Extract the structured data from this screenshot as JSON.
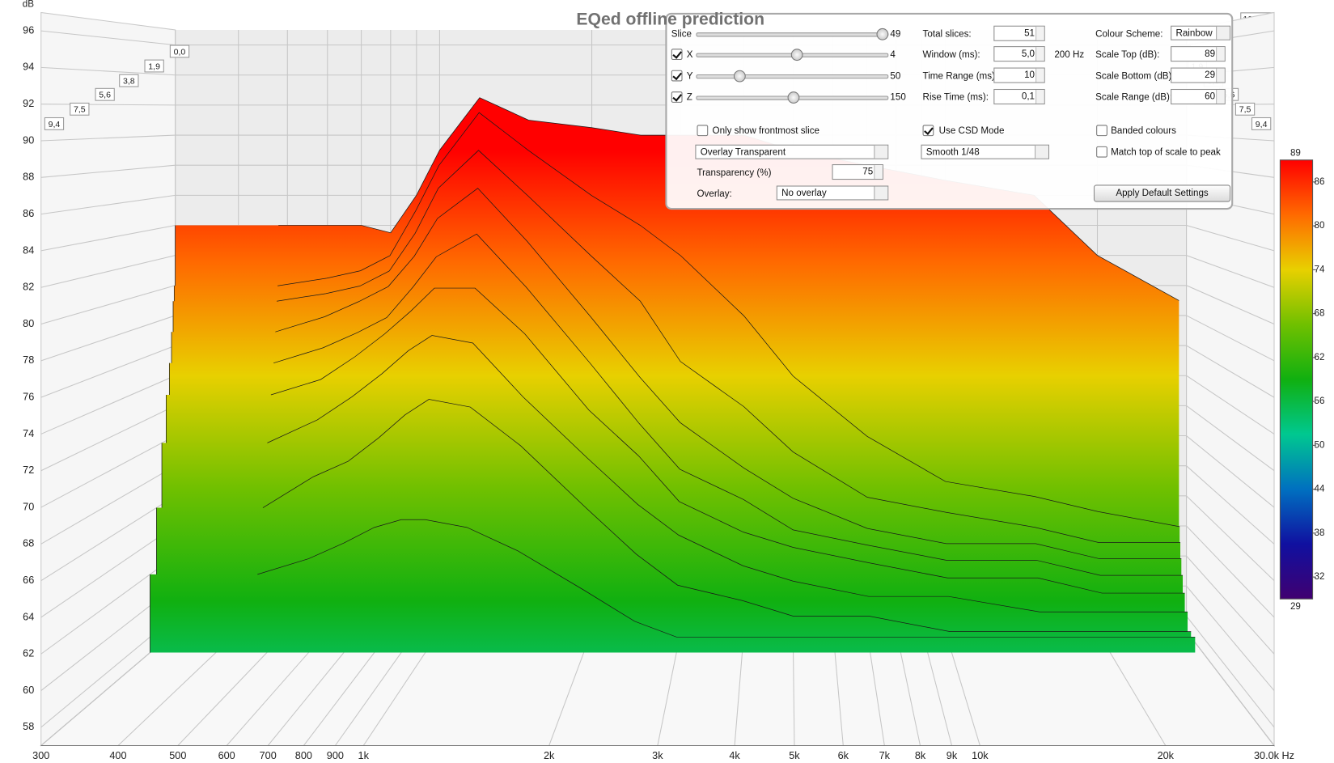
{
  "chart_data": {
    "type": "waterfall",
    "title": "EQed offline prediction",
    "y_label": "dB",
    "x": [
      480,
      600,
      700,
      800,
      900,
      1000,
      1200,
      1500,
      2000,
      2500,
      3000,
      4000,
      5000,
      7000,
      10000,
      15000,
      20000,
      29000
    ],
    "xlim": [
      300,
      30000
    ],
    "xticks": [
      300,
      400,
      500,
      600,
      700,
      800,
      900,
      {
        "value": 1000,
        "label": "1k"
      },
      {
        "value": 2000,
        "label": "2k"
      },
      {
        "value": 3000,
        "label": "3k"
      },
      {
        "value": 4000,
        "label": "4k"
      },
      {
        "value": 5000,
        "label": "5k"
      },
      {
        "value": 6000,
        "label": "6k"
      },
      {
        "value": 7000,
        "label": "7k"
      },
      {
        "value": 8000,
        "label": "8k"
      },
      {
        "value": 9000,
        "label": "9k"
      },
      {
        "value": 10000,
        "label": "10k"
      },
      {
        "value": 20000,
        "label": "20k"
      },
      {
        "value": 30000,
        "label": "30,0k Hz"
      }
    ],
    "ylim": [
      57,
      97
    ],
    "yticks": [
      58,
      60,
      62,
      64,
      66,
      68,
      70,
      72,
      74,
      76,
      78,
      80,
      82,
      84,
      86,
      88,
      90,
      92,
      94,
      96
    ],
    "zlim": [
      0,
      10
    ],
    "zticks": [
      {
        "value": 0,
        "label": "0,0"
      },
      {
        "value": 1.9,
        "label": "1,9"
      },
      {
        "value": 3.8,
        "label": "3,8"
      },
      {
        "value": 5.6,
        "label": "5,6"
      },
      {
        "value": 7.5,
        "label": "7,5"
      },
      {
        "value": 9.4,
        "label": "9,4"
      }
    ],
    "z_end_label": "10,0ms",
    "grid": true,
    "series": [
      {
        "time": 0,
        "values": [
          84,
          84,
          84,
          83.5,
          86,
          89,
          92.5,
          91,
          90.5,
          90,
          90,
          90,
          89,
          88,
          87,
          86,
          82,
          79
        ]
      },
      {
        "time": 0.4,
        "values": [
          80,
          80.5,
          81,
          82,
          85,
          88,
          91.5,
          89,
          86,
          84,
          82,
          78,
          74,
          70,
          67,
          66,
          65,
          64
        ]
      },
      {
        "time": 0.8,
        "values": [
          79,
          79.5,
          80,
          81,
          83.5,
          86.5,
          89,
          86,
          82,
          79,
          75,
          72,
          69,
          66,
          65,
          64,
          63,
          63
        ]
      },
      {
        "time": 1.4,
        "values": [
          77,
          78,
          79,
          80,
          82,
          84.5,
          86.5,
          83,
          78,
          74,
          71,
          68,
          66,
          64,
          63,
          63,
          62,
          62
        ]
      },
      {
        "time": 2.2,
        "values": [
          75,
          76,
          77,
          78,
          80,
          82,
          83.5,
          80,
          75,
          71,
          68,
          66,
          64,
          63,
          62,
          62,
          61,
          61
        ]
      },
      {
        "time": 3.4,
        "values": [
          73,
          74,
          75.5,
          77,
          78.5,
          80,
          80,
          77,
          72,
          69,
          66,
          64,
          63,
          62,
          61,
          61,
          60,
          60
        ]
      },
      {
        "time": 5.0,
        "values": [
          70,
          71.5,
          73,
          74.5,
          76,
          77,
          76.5,
          73,
          69,
          66,
          64,
          62,
          61,
          60,
          60,
          59,
          59,
          59
        ]
      },
      {
        "time": 7.0,
        "values": [
          66,
          68,
          69,
          70.5,
          72,
          73,
          72.5,
          70,
          66,
          63,
          61,
          60,
          59,
          59,
          58,
          58,
          58,
          58
        ]
      },
      {
        "time": 9.4,
        "values": [
          62,
          63,
          64,
          65,
          65.5,
          65.5,
          65,
          63.5,
          61,
          59,
          58,
          58,
          58,
          58,
          58,
          58,
          58,
          58
        ]
      }
    ],
    "color_scale": {
      "lim": [
        29,
        89
      ],
      "ticks": [
        32,
        38,
        44,
        50,
        56,
        62,
        68,
        74,
        80,
        86
      ],
      "colors": [
        "#ff0000",
        "#ff6a00",
        "#e8d000",
        "#70c000",
        "#10b010",
        "#00c890",
        "#0070c0",
        "#1010a0",
        "#400070"
      ]
    }
  },
  "controls": {
    "sliders": [
      {
        "label": "Slice",
        "value": "49"
      },
      {
        "label": "X",
        "value": "4",
        "checked": true
      },
      {
        "label": "Y",
        "value": "50",
        "checked": true
      },
      {
        "label": "Z",
        "value": "150",
        "checked": true
      }
    ],
    "fields": [
      {
        "label": "Total slices:",
        "value": "51"
      },
      {
        "label": "Window (ms):",
        "value": "5,0",
        "unit": "200 Hz"
      },
      {
        "label": "Time Range (ms):",
        "value": "10"
      },
      {
        "label": "Rise Time (ms):",
        "value": "0,1"
      }
    ],
    "scale": [
      {
        "label": "Colour Scheme:",
        "value": "Rainbow"
      },
      {
        "label": "Scale Top (dB):",
        "value": "89"
      },
      {
        "label": "Scale Bottom (dB):",
        "value": "29"
      },
      {
        "label": "Scale Range (dB):",
        "value": "60"
      }
    ],
    "frontmost": {
      "label": "Only show frontmost slice",
      "checked": false
    },
    "csd": {
      "label": "Use CSD Mode",
      "checked": true
    },
    "banded": {
      "label": "Banded colours",
      "checked": false
    },
    "match_top": {
      "label": "Match top of scale to peak",
      "checked": false
    },
    "overlay_mode": "Overlay Transparent",
    "smoothing": "Smooth 1/48",
    "transparency": {
      "label": "Transparency (%)",
      "value": "75"
    },
    "overlay": {
      "label": "Overlay:",
      "value": "No overlay"
    },
    "apply_button": "Apply Default Settings"
  }
}
